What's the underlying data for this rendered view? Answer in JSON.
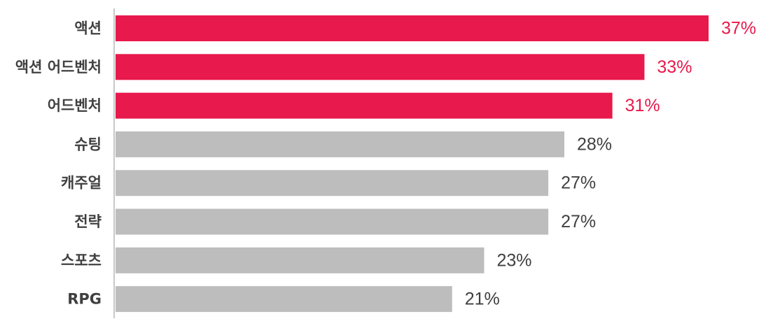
{
  "chart_data": {
    "type": "bar",
    "orientation": "horizontal",
    "title": "",
    "xlabel": "",
    "ylabel": "",
    "categories": [
      "액션",
      "액션 어드벤처",
      "어드벤처",
      "슈팅",
      "캐주얼",
      "전략",
      "스포츠",
      "RPG"
    ],
    "values": [
      37,
      33,
      31,
      28,
      27,
      27,
      23,
      21
    ],
    "value_labels": [
      "37%",
      "33%",
      "31%",
      "28%",
      "27%",
      "27%",
      "23%",
      "21%"
    ],
    "highlight": [
      true,
      true,
      true,
      false,
      false,
      false,
      false,
      false
    ],
    "xlim": [
      0,
      37
    ],
    "grid": false,
    "colors": {
      "highlight_bar": "#e8194c",
      "highlight_text": "#e8194c",
      "normal_bar": "#bdbdbd",
      "normal_text": "#404040",
      "axis_line": "#c8c8c8"
    }
  }
}
